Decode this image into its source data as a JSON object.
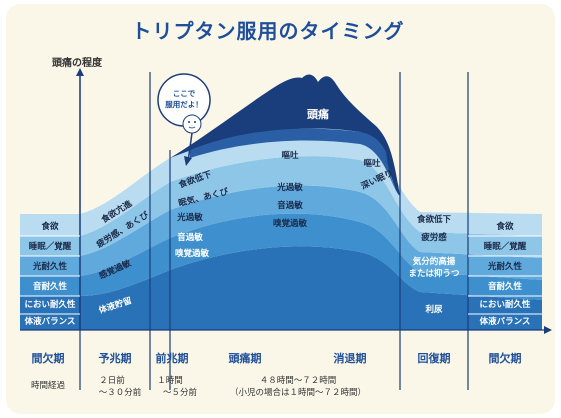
{
  "title": "トリプタン服用のタイミング",
  "y_axis_label": "頭痛の程度",
  "bubble": {
    "line1": "ここで",
    "line2": "服用だよ！"
  },
  "peak_label": "頭痛",
  "band_labels": {
    "nausea": "嘔吐",
    "nausea2": "嘔吐",
    "deep_sleep": "深い眠り",
    "appetite_loss": "食欲低下",
    "drowsy": "眠気、あくび",
    "photo": "光過敏",
    "phono": "音過敏",
    "osmo": "嗅覚過敏",
    "photo2": "光過敏",
    "phono2": "音過敏",
    "osmo2": "嗅覚過敏"
  },
  "prodrome_labels": {
    "appetite_up": "食欲亢進",
    "fatigue_yawn": "疲労感、あくび",
    "hypersens": "感覚過敏",
    "fluid": "体液貯留"
  },
  "interictal_left": [
    "食欲",
    "睡眠／覚醒",
    "光耐久性",
    "音耐久性",
    "におい耐久性",
    "体液バランス"
  ],
  "interictal_right": [
    "食欲",
    "睡眠／覚醒",
    "光耐久性",
    "音耐久性",
    "におい耐久性",
    "体液バランス"
  ],
  "recovery_labels": {
    "appetite_loss": "食欲低下",
    "fatigue": "疲労感",
    "mood": "気分的高揚\nまたは抑うつ",
    "mood1": "気分的高揚",
    "mood2": "または抑うつ",
    "urine": "利尿"
  },
  "phases": [
    "間欠期",
    "予兆期",
    "前兆期",
    "頭痛期",
    "消退期",
    "回復期",
    "間欠期"
  ],
  "times": {
    "interictal": "時間経過",
    "prodrome1": "２日前",
    "prodrome2": "〜３０分前",
    "aura1": "１時間",
    "aura2": "〜５分前",
    "headache1": "４８時間〜７２時間",
    "headache2": "（小児の場合は１時間〜７２時間）"
  },
  "colors": {
    "title": "#1f4f9c",
    "dark_navy": "#1a3d7c",
    "band1": "#b9dcf1",
    "band2": "#8ec6e8",
    "band3": "#5fa9dd",
    "band4": "#3d8fce",
    "band5": "#2a72b8",
    "background": "#fbf7e8"
  }
}
